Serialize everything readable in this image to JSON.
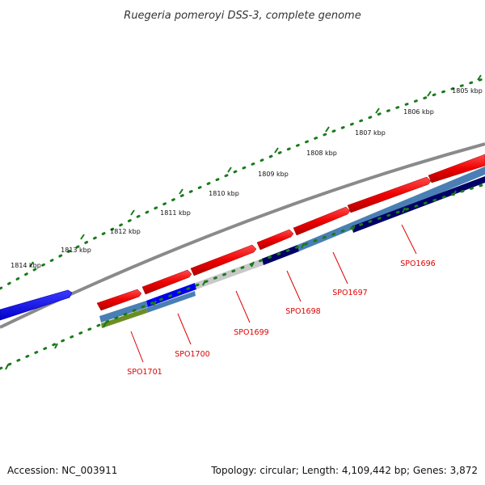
{
  "title": "Ruegeria pomeroyi DSS-3, complete genome",
  "footer": {
    "accession": "Accession: NC_003911",
    "summary": "Topology: circular; Length: 4,109,442 bp; Genes: 3,872"
  },
  "scale_labels": [
    "1805 kbp",
    "1806 kbp",
    "1807 kbp",
    "1808 kbp",
    "1809 kbp",
    "1810 kbp",
    "1811 kbp",
    "1812 kbp",
    "1813 kbp",
    "1814 kbp"
  ],
  "genes": {
    "SPO1696": "SPO1696",
    "SPO1697": "SPO1697",
    "SPO1698": "SPO1698",
    "SPO1699": "SPO1699",
    "SPO1700": "SPO1700",
    "SPO1701": "SPO1701"
  },
  "colors": {
    "backbone": "#8a8a8a",
    "ticks": "#1a7a1a",
    "forward_cds": "#ee0000",
    "reverse_cds": "#0000ee",
    "label": "#e00000",
    "navy": "#000066",
    "steel": "#4a7fb5",
    "silver": "#c8c8c8",
    "olive": "#6b8e23"
  }
}
